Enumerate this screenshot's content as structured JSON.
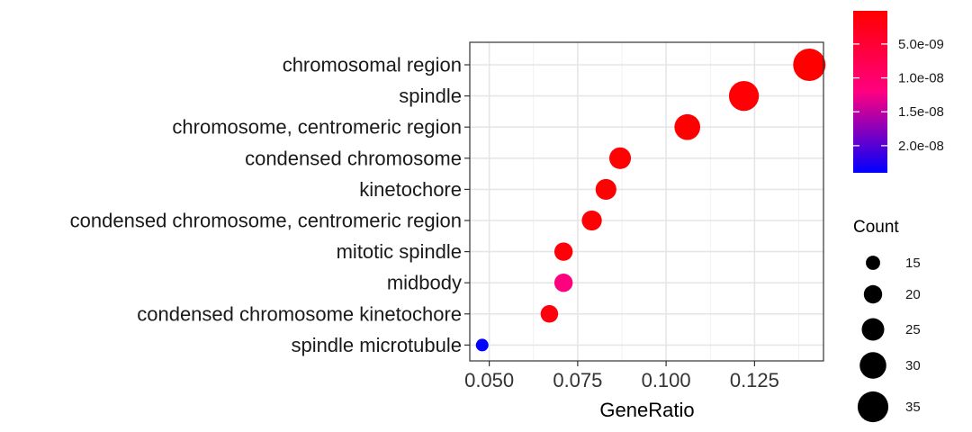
{
  "chart_data": {
    "type": "scatter",
    "xlabel": "GeneRatio",
    "xlim": [
      0.0445,
      0.1445
    ],
    "xticks": [
      {
        "value": 0.05,
        "label": "0.050"
      },
      {
        "value": 0.075,
        "label": "0.075"
      },
      {
        "value": 0.1,
        "label": "0.100"
      },
      {
        "value": 0.125,
        "label": "0.125"
      }
    ],
    "grid": true,
    "points": [
      {
        "term": "chromosomal region",
        "gene_ratio": 0.1405,
        "count": 37,
        "p_adjust": 1e-10
      },
      {
        "term": "spindle",
        "gene_ratio": 0.122,
        "count": 34,
        "p_adjust": 5e-10
      },
      {
        "term": "chromosome, centromeric region",
        "gene_ratio": 0.106,
        "count": 29,
        "p_adjust": 2e-10
      },
      {
        "term": "condensed chromosome",
        "gene_ratio": 0.087,
        "count": 24,
        "p_adjust": 4e-10
      },
      {
        "term": "kinetochore",
        "gene_ratio": 0.083,
        "count": 23,
        "p_adjust": 4e-10
      },
      {
        "term": "condensed chromosome, centromeric region",
        "gene_ratio": 0.079,
        "count": 22,
        "p_adjust": 6e-10
      },
      {
        "term": "mitotic spindle",
        "gene_ratio": 0.071,
        "count": 20,
        "p_adjust": 9e-10
      },
      {
        "term": "midbody",
        "gene_ratio": 0.071,
        "count": 20,
        "p_adjust": 1.2e-08
      },
      {
        "term": "condensed chromosome kinetochore",
        "gene_ratio": 0.067,
        "count": 19,
        "p_adjust": 1.5e-09
      },
      {
        "term": "spindle microtubule",
        "gene_ratio": 0.048,
        "count": 13,
        "p_adjust": 2.4e-08
      }
    ],
    "color_legend": {
      "ticks": [
        {
          "value": 5e-09,
          "label": "5.0e-09"
        },
        {
          "value": 1e-08,
          "label": "1.0e-08"
        },
        {
          "value": 1.5e-08,
          "label": "1.5e-08"
        },
        {
          "value": 2e-08,
          "label": "2.0e-08"
        }
      ],
      "range": [
        1e-10,
        2.4e-08
      ],
      "low_color": "#ff0000",
      "high_color": "#0000ff",
      "placement": "top-right"
    },
    "size_legend": {
      "title": "Count",
      "values": [
        15,
        20,
        25,
        30,
        35
      ],
      "labels": [
        "15",
        "20",
        "25",
        "30",
        "35"
      ],
      "placement": "right"
    }
  }
}
